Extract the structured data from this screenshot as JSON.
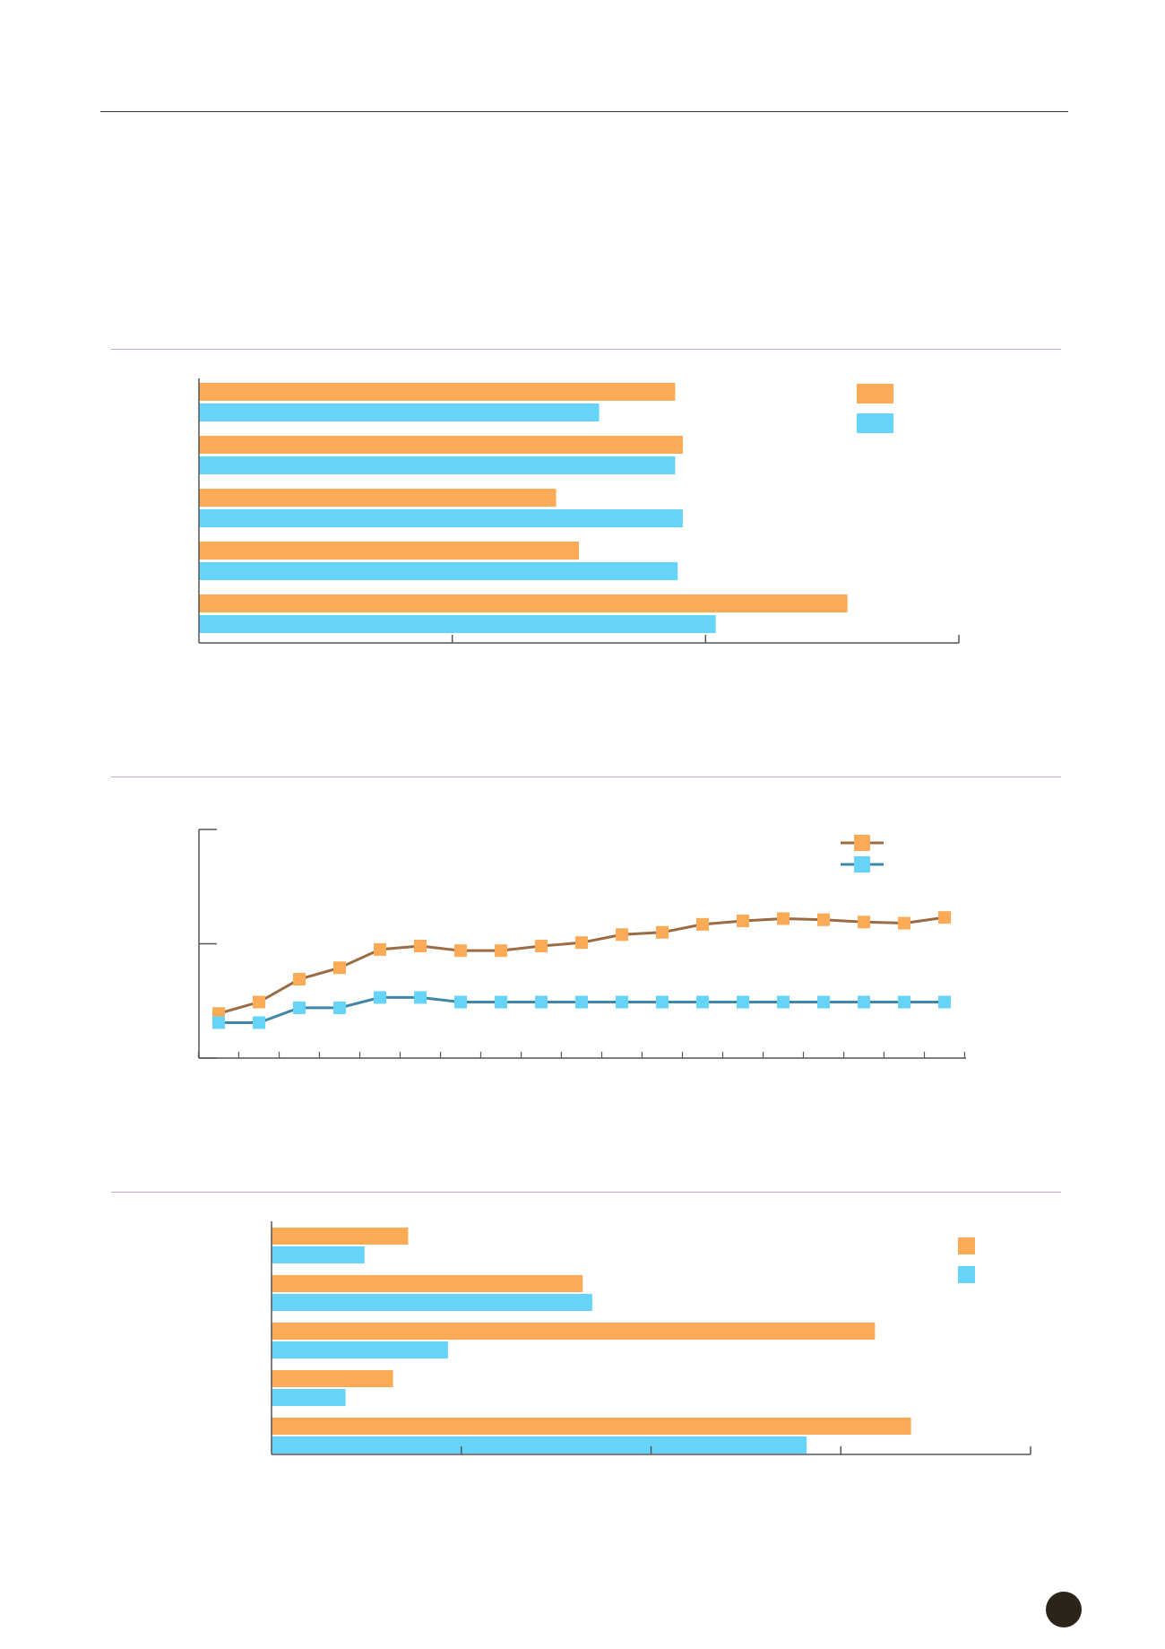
{
  "colors": {
    "orange_fill": "#fbaa55",
    "blue_fill": "#66d4f8",
    "orange_line": "#9b6b43",
    "blue_line": "#3f86a9",
    "axis": "#555555",
    "section_rule": "#c9a6c9",
    "top_rule": "#333333",
    "badge": "#2b2418"
  },
  "chart_data": [
    {
      "type": "bar",
      "orientation": "horizontal",
      "xlim": [
        0,
        3
      ],
      "legend": "top-right",
      "series": [
        {
          "values": [
            1.88,
            1.91,
            1.41,
            1.5,
            2.56
          ]
        },
        {
          "values": [
            1.58,
            1.88,
            1.91,
            1.89,
            2.04
          ]
        }
      ]
    },
    {
      "type": "line",
      "ylim": [
        0,
        2
      ],
      "legend": "top-right",
      "series": [
        {
          "values": [
            0.39,
            0.49,
            0.69,
            0.79,
            0.95,
            0.98,
            0.94,
            0.94,
            0.98,
            1.01,
            1.08,
            1.1,
            1.17,
            1.2,
            1.22,
            1.21,
            1.19,
            1.18,
            1.23
          ]
        },
        {
          "values": [
            0.31,
            0.31,
            0.44,
            0.44,
            0.53,
            0.53,
            0.49,
            0.49,
            0.49,
            0.49,
            0.49,
            0.49,
            0.49,
            0.49,
            0.49,
            0.49,
            0.49,
            0.49,
            0.49
          ]
        }
      ]
    },
    {
      "type": "bar",
      "orientation": "horizontal",
      "xlim": [
        0,
        4
      ],
      "legend": "top-right",
      "series": [
        {
          "values": [
            0.72,
            1.64,
            3.18,
            0.64,
            3.37
          ]
        },
        {
          "values": [
            0.49,
            1.69,
            0.93,
            0.39,
            2.82
          ]
        }
      ]
    }
  ]
}
